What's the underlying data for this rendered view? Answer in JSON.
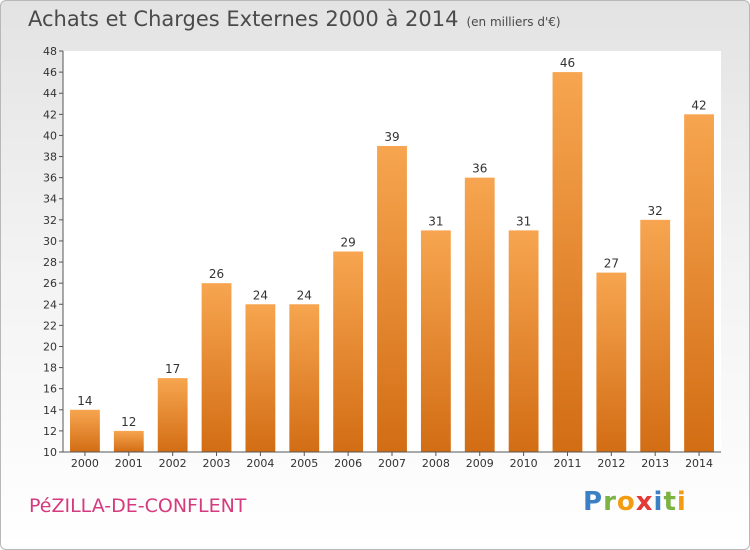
{
  "header": {
    "title": "Achats et Charges Externes 2000 à 2014",
    "unit": "(en milliers d'€)"
  },
  "footer": {
    "commune": "PéZILLA-DE-CONFLENT",
    "logo_letters": [
      {
        "ch": "P",
        "color": "#3b7fc4"
      },
      {
        "ch": "r",
        "color": "#7cb342"
      },
      {
        "ch": "o",
        "color": "#f39c12"
      },
      {
        "ch": "x",
        "color": "#e53935"
      },
      {
        "ch": "i",
        "color": "#3b7fc4"
      },
      {
        "ch": "t",
        "color": "#7cb342"
      },
      {
        "ch": "i",
        "color": "#f39c12"
      }
    ]
  },
  "chart_data": {
    "type": "bar",
    "categories": [
      "2000",
      "2001",
      "2002",
      "2003",
      "2004",
      "2005",
      "2006",
      "2007",
      "2008",
      "2009",
      "2010",
      "2011",
      "2012",
      "2013",
      "2014"
    ],
    "values": [
      14,
      12,
      17,
      26,
      24,
      24,
      29,
      39,
      31,
      36,
      31,
      46,
      27,
      32,
      42
    ],
    "title": "Achats et Charges Externes 2000 à 2014",
    "ylim": [
      10,
      48
    ],
    "yticks": [
      10,
      12,
      14,
      16,
      18,
      20,
      22,
      24,
      26,
      28,
      30,
      32,
      34,
      36,
      38,
      40,
      42,
      44,
      46,
      48
    ],
    "grid": false,
    "bar_color_top": "#f7a550",
    "bar_color_bottom": "#d26d14"
  }
}
